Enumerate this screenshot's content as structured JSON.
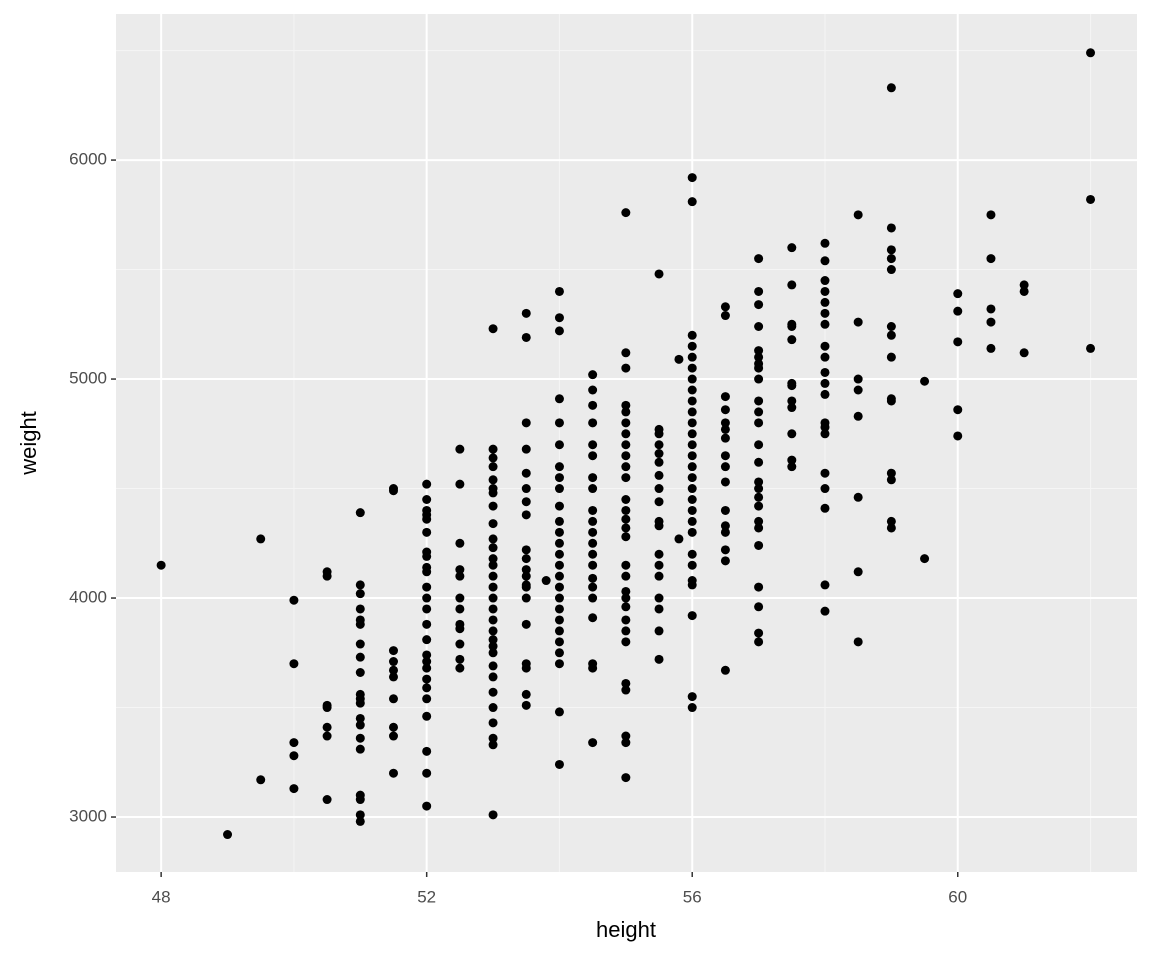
{
  "chart_data": {
    "type": "scatter",
    "x_label": "height",
    "y_label": "weight",
    "xlim": [
      47.32,
      62.7
    ],
    "ylim": [
      2749,
      6667
    ],
    "xticks": [
      48,
      52,
      56,
      60
    ],
    "yticks": [
      3000,
      4000,
      5000,
      6000
    ],
    "grid": true,
    "color": "#000000",
    "x": [
      48,
      49,
      49.5,
      49.5,
      50,
      50,
      50,
      50,
      50,
      50.5,
      50.5,
      50.5,
      50.5,
      50.5,
      50.5,
      50.5,
      51,
      51,
      51,
      51,
      51,
      51,
      51,
      51,
      51,
      51,
      51,
      51,
      51,
      51,
      51,
      51,
      51,
      51,
      51,
      51,
      51.5,
      51.5,
      51.5,
      51.5,
      51.5,
      51.5,
      51.5,
      51.5,
      51.5,
      51.5,
      52,
      52,
      52,
      52,
      52,
      52,
      52,
      52,
      52,
      52,
      52,
      52,
      52,
      52,
      52,
      52,
      52,
      52,
      52,
      52,
      52,
      52,
      52,
      52,
      52,
      52.5,
      52.5,
      52.5,
      52.5,
      52.5,
      52.5,
      52.5,
      52.5,
      52.5,
      52.5,
      52.5,
      52.5,
      53,
      53,
      53,
      53,
      53,
      53,
      53,
      53,
      53,
      53,
      53,
      53,
      53,
      53,
      53,
      53,
      53,
      53,
      53,
      53,
      53,
      53,
      53,
      53,
      53,
      53,
      53,
      53,
      53,
      53,
      53.5,
      53.5,
      53.5,
      53.5,
      53.5,
      53.5,
      53.5,
      53.5,
      53.5,
      53.5,
      53.5,
      53.5,
      53.5,
      53.5,
      53.5,
      53.5,
      53.5,
      53.5,
      53.5,
      53.5,
      53.8,
      54,
      54,
      54,
      54,
      54,
      54,
      54,
      54,
      54,
      54,
      54,
      54,
      54,
      54,
      54,
      54,
      54,
      54,
      54,
      54,
      54,
      54,
      54,
      54,
      54,
      54,
      54.5,
      54.5,
      54.5,
      54.5,
      54.5,
      54.5,
      54.5,
      54.5,
      54.5,
      54.5,
      54.5,
      54.5,
      54.5,
      54.5,
      54.5,
      54.5,
      54.5,
      54.5,
      54.5,
      54.5,
      54.5,
      55,
      55,
      55,
      55,
      55,
      55,
      55,
      55,
      55,
      55,
      55,
      55,
      55,
      55,
      55,
      55,
      55,
      55,
      55,
      55,
      55,
      55,
      55,
      55,
      55,
      55,
      55,
      55,
      55,
      55.5,
      55.5,
      55.5,
      55.5,
      55.5,
      55.5,
      55.5,
      55.5,
      55.5,
      55.5,
      55.5,
      55.5,
      55.5,
      55.5,
      55.5,
      55.5,
      55.5,
      55.5,
      55.8,
      55.8,
      56,
      56,
      56,
      56,
      56,
      56,
      56,
      56,
      56,
      56,
      56,
      56,
      56,
      56,
      56,
      56,
      56,
      56,
      56,
      56,
      56,
      56,
      56,
      56,
      56,
      56,
      56,
      56,
      56.5,
      56.5,
      56.5,
      56.5,
      56.5,
      56.5,
      56.5,
      56.5,
      56.5,
      56.5,
      56.5,
      56.5,
      56.5,
      56.5,
      56.5,
      56.5,
      57,
      57,
      57,
      57,
      57,
      57,
      57,
      57,
      57,
      57,
      57,
      57,
      57,
      57,
      57,
      57,
      57,
      57,
      57,
      57,
      57,
      57,
      57,
      57,
      57,
      57.5,
      57.5,
      57.5,
      57.5,
      57.5,
      57.5,
      57.5,
      57.5,
      57.5,
      57.5,
      57.5,
      57.5,
      58,
      58,
      58,
      58,
      58,
      58,
      58,
      58,
      58,
      58,
      58,
      58,
      58,
      58,
      58,
      58,
      58,
      58,
      58,
      58,
      58.5,
      58.5,
      58.5,
      58.5,
      58.5,
      58.5,
      58.5,
      58.5,
      59,
      59,
      59,
      59,
      59,
      59,
      59,
      59,
      59,
      59,
      59,
      59,
      59,
      59,
      59.5,
      59.5,
      60,
      60,
      60,
      60,
      60,
      60.5,
      60.5,
      60.5,
      60.5,
      60.5,
      61,
      61,
      61,
      62,
      62,
      62
    ],
    "values": [
      4150,
      2920,
      3170,
      4270,
      3130,
      3280,
      3340,
      3700,
      3990,
      3080,
      3370,
      3410,
      3500,
      3510,
      4100,
      4120,
      2980,
      3010,
      3080,
      3100,
      3310,
      3360,
      3420,
      3450,
      3520,
      3540,
      3560,
      3660,
      3730,
      3790,
      3880,
      3900,
      3950,
      4020,
      4060,
      4390,
      3200,
      3370,
      3410,
      3540,
      3640,
      3670,
      3710,
      3760,
      4490,
      4500,
      3050,
      3200,
      3300,
      3460,
      3540,
      3590,
      3630,
      3680,
      3710,
      3740,
      3810,
      3880,
      3950,
      4000,
      4050,
      4120,
      4140,
      4190,
      4210,
      4300,
      4360,
      4380,
      4400,
      4450,
      4520,
      3680,
      3720,
      3790,
      3860,
      3880,
      3950,
      4000,
      4100,
      4130,
      4250,
      4520,
      4680,
      3010,
      3330,
      3360,
      3430,
      3500,
      3570,
      3640,
      3690,
      3750,
      3780,
      3810,
      3850,
      3900,
      3950,
      4000,
      4050,
      4100,
      4150,
      4180,
      4230,
      4270,
      4340,
      4420,
      4480,
      4500,
      4540,
      4600,
      4640,
      4680,
      5230,
      3510,
      3560,
      3680,
      3700,
      3880,
      4000,
      4050,
      4060,
      4100,
      4130,
      4180,
      4220,
      4380,
      4440,
      4500,
      4570,
      4680,
      4800,
      5190,
      5300,
      4080,
      3240,
      3480,
      3700,
      3750,
      3800,
      3850,
      3900,
      3950,
      4000,
      4050,
      4100,
      4150,
      4200,
      4250,
      4300,
      4350,
      4420,
      4500,
      4550,
      4600,
      4700,
      4800,
      4910,
      5220,
      5280,
      5400,
      3340,
      3680,
      3700,
      3910,
      4000,
      4050,
      4090,
      4150,
      4200,
      4250,
      4300,
      4350,
      4400,
      4500,
      4550,
      4650,
      4700,
      4800,
      4880,
      4950,
      5020,
      3180,
      3340,
      3370,
      3580,
      3610,
      3800,
      3850,
      3900,
      3960,
      4000,
      4030,
      4100,
      4150,
      4280,
      4320,
      4360,
      4400,
      4450,
      4550,
      4600,
      4650,
      4700,
      4750,
      4800,
      4850,
      4880,
      5050,
      5120,
      5760,
      3720,
      3850,
      3950,
      4000,
      4100,
      4150,
      4200,
      4330,
      4350,
      4440,
      4500,
      4560,
      4620,
      4660,
      4700,
      4750,
      4770,
      5480,
      4270,
      5090,
      3500,
      3550,
      3920,
      4060,
      4080,
      4150,
      4200,
      4300,
      4350,
      4400,
      4450,
      4500,
      4550,
      4600,
      4650,
      4700,
      4750,
      4800,
      4850,
      4900,
      4950,
      5000,
      5050,
      5100,
      5150,
      5200,
      5810,
      5920,
      3670,
      4170,
      4220,
      4300,
      4330,
      4400,
      4530,
      4600,
      4650,
      4730,
      4770,
      4800,
      4860,
      4920,
      5290,
      5330,
      3800,
      3840,
      3960,
      4050,
      4240,
      4320,
      4350,
      4420,
      4460,
      4500,
      4530,
      4620,
      4700,
      4800,
      4850,
      4900,
      5000,
      5050,
      5070,
      5100,
      5130,
      5240,
      5340,
      5400,
      5550,
      4600,
      4630,
      4750,
      4870,
      4900,
      4970,
      4980,
      5180,
      5240,
      5250,
      5430,
      5600,
      3940,
      4060,
      4410,
      4500,
      4570,
      4750,
      4780,
      4800,
      4930,
      4980,
      5030,
      5100,
      5150,
      5250,
      5300,
      5350,
      5400,
      5450,
      5540,
      5620,
      3800,
      4120,
      4460,
      4830,
      4950,
      5000,
      5260,
      5750,
      4320,
      4350,
      4540,
      4570,
      4900,
      4910,
      5100,
      5200,
      5240,
      5500,
      5550,
      5590,
      5690,
      6330,
      4180,
      4990,
      4740,
      4860,
      5170,
      5310,
      5390,
      5140,
      5260,
      5320,
      5550,
      5750,
      5120,
      5400,
      5430,
      5140,
      5820,
      6490
    ]
  }
}
